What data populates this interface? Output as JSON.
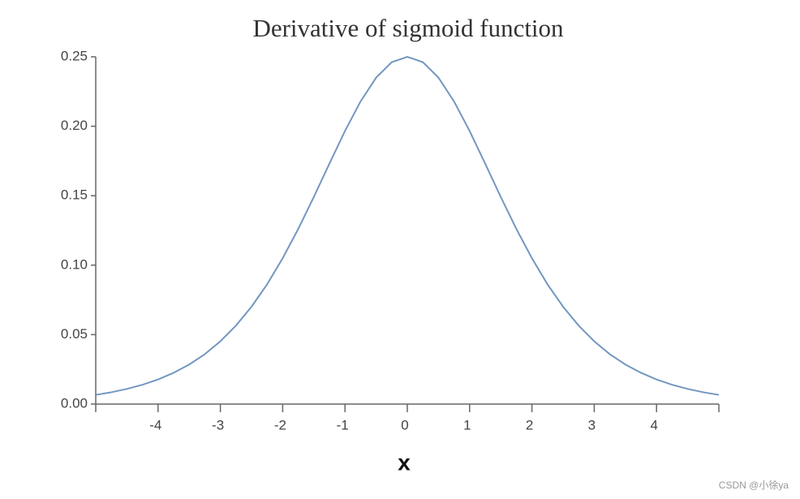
{
  "chart_data": {
    "type": "line",
    "title": "Derivative of sigmoid function",
    "x_label": "x",
    "x": [
      -5,
      -4.75,
      -4.5,
      -4.25,
      -4,
      -3.75,
      -3.5,
      -3.25,
      -3,
      -2.75,
      -2.5,
      -2.25,
      -2,
      -1.75,
      -1.5,
      -1.25,
      -1,
      -0.75,
      -0.5,
      -0.25,
      0,
      0.25,
      0.5,
      0.75,
      1,
      1.25,
      1.5,
      1.75,
      2,
      2.25,
      2.5,
      2.75,
      3,
      3.25,
      3.5,
      3.75,
      4,
      4.25,
      4.5,
      4.75,
      5
    ],
    "series": [
      {
        "color": "#7397c0",
        "values": [
          0.0066,
          0.0085,
          0.0109,
          0.0139,
          0.0177,
          0.0225,
          0.0285,
          0.0359,
          0.0452,
          0.0565,
          0.0701,
          0.0862,
          0.105,
          0.1261,
          0.1491,
          0.1731,
          0.1966,
          0.2179,
          0.235,
          0.2461,
          0.25,
          0.2461,
          0.235,
          0.2179,
          0.1966,
          0.1731,
          0.1491,
          0.1261,
          0.105,
          0.0862,
          0.0701,
          0.0565,
          0.0452,
          0.0359,
          0.0285,
          0.0225,
          0.0177,
          0.0139,
          0.0109,
          0.0085,
          0.0066
        ]
      }
    ],
    "xlim": [
      -5,
      5
    ],
    "xticks": [
      -4,
      -3,
      -2,
      -1,
      0,
      1,
      2,
      3,
      4
    ],
    "ylim": [
      0,
      0.25
    ],
    "yticks": [
      {
        "value": 0,
        "label": "0.00"
      },
      0.05,
      {
        "value": 0.1,
        "label": "0.10"
      },
      0.15,
      {
        "value": 0.2,
        "label": "0.20"
      },
      0.25
    ],
    "grid": false,
    "watermark": "CSDN @小徐ya"
  }
}
